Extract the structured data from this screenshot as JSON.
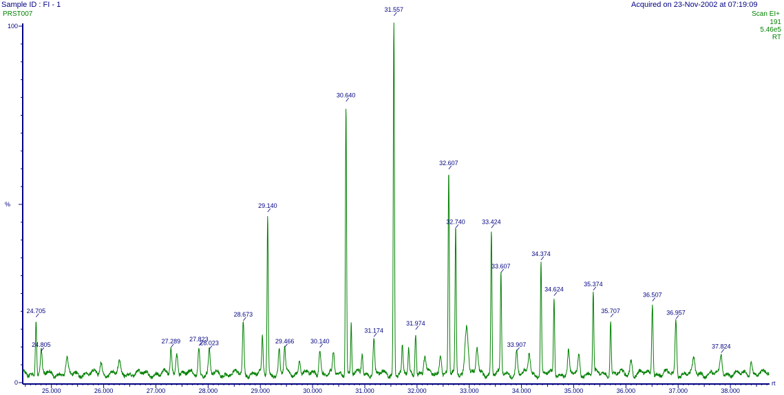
{
  "header": {
    "sample_id": "Sample ID : FI - 1",
    "acquired": "Acquired on 23-Nov-2002 at 07:19:09",
    "file": "PRST007",
    "scan": "Scan EI+",
    "ion": "191",
    "intensity": "5.46e5",
    "trace": "RT"
  },
  "colors": {
    "trace": "#008000",
    "axis": "#000080",
    "label": "#000080"
  },
  "chart_data": {
    "type": "line",
    "title": "",
    "xlabel": "rt",
    "ylabel": "%",
    "xlim": [
      24.45,
      38.75
    ],
    "ylim": [
      0,
      100
    ],
    "x_ticks": [
      "25.000",
      "26.000",
      "27.000",
      "28.000",
      "29.000",
      "30.000",
      "31.000",
      "32.000",
      "33.000",
      "34.000",
      "35.000",
      "36.000",
      "37.000",
      "38.000"
    ],
    "y_ticks": [
      "0",
      "100"
    ],
    "baseline": 2.5,
    "peaks": [
      {
        "rt": 24.705,
        "h": 15.5,
        "w": 0.012,
        "label": "24.705"
      },
      {
        "rt": 24.805,
        "h": 6,
        "w": 0.015,
        "label": "24.805"
      },
      {
        "rt": 25.3,
        "h": 3.5,
        "w": 0.02,
        "label": ""
      },
      {
        "rt": 25.95,
        "h": 3.2,
        "w": 0.02,
        "label": ""
      },
      {
        "rt": 26.3,
        "h": 3,
        "w": 0.02,
        "label": ""
      },
      {
        "rt": 27.289,
        "h": 7,
        "w": 0.015,
        "label": "27.289"
      },
      {
        "rt": 27.4,
        "h": 6.5,
        "w": 0.02,
        "label": ""
      },
      {
        "rt": 27.823,
        "h": 7.5,
        "w": 0.015,
        "label": "27.823"
      },
      {
        "rt": 28.023,
        "h": 6.5,
        "w": 0.015,
        "label": "28.023"
      },
      {
        "rt": 28.673,
        "h": 14.5,
        "w": 0.014,
        "label": "28.673"
      },
      {
        "rt": 29.04,
        "h": 10,
        "w": 0.012,
        "label": ""
      },
      {
        "rt": 29.14,
        "h": 45,
        "w": 0.011,
        "label": "29.140"
      },
      {
        "rt": 29.36,
        "h": 6.5,
        "w": 0.015,
        "label": ""
      },
      {
        "rt": 29.466,
        "h": 7,
        "w": 0.015,
        "label": "29.466"
      },
      {
        "rt": 29.75,
        "h": 4.5,
        "w": 0.02,
        "label": ""
      },
      {
        "rt": 30.14,
        "h": 7,
        "w": 0.018,
        "label": "30.140"
      },
      {
        "rt": 30.4,
        "h": 5.5,
        "w": 0.015,
        "label": ""
      },
      {
        "rt": 30.64,
        "h": 76,
        "w": 0.011,
        "label": "30.640"
      },
      {
        "rt": 30.74,
        "h": 14,
        "w": 0.01,
        "label": ""
      },
      {
        "rt": 30.95,
        "h": 5.5,
        "w": 0.015,
        "label": ""
      },
      {
        "rt": 31.174,
        "h": 10,
        "w": 0.014,
        "label": "31.174"
      },
      {
        "rt": 31.557,
        "h": 100,
        "w": 0.011,
        "label": "31.557"
      },
      {
        "rt": 31.72,
        "h": 7.5,
        "w": 0.012,
        "label": ""
      },
      {
        "rt": 31.84,
        "h": 7,
        "w": 0.012,
        "label": ""
      },
      {
        "rt": 31.974,
        "h": 12,
        "w": 0.013,
        "label": "31.974"
      },
      {
        "rt": 32.15,
        "h": 5,
        "w": 0.02,
        "label": ""
      },
      {
        "rt": 32.45,
        "h": 6,
        "w": 0.02,
        "label": ""
      },
      {
        "rt": 32.607,
        "h": 57,
        "w": 0.011,
        "label": "32.607"
      },
      {
        "rt": 32.74,
        "h": 40.5,
        "w": 0.011,
        "label": "32.740"
      },
      {
        "rt": 32.95,
        "h": 14,
        "w": 0.03,
        "label": ""
      },
      {
        "rt": 33.15,
        "h": 7,
        "w": 0.02,
        "label": ""
      },
      {
        "rt": 33.424,
        "h": 40.5,
        "w": 0.011,
        "label": "33.424"
      },
      {
        "rt": 33.607,
        "h": 28,
        "w": 0.011,
        "label": "33.607"
      },
      {
        "rt": 33.907,
        "h": 6,
        "w": 0.018,
        "label": "33.907"
      },
      {
        "rt": 34.15,
        "h": 6,
        "w": 0.02,
        "label": ""
      },
      {
        "rt": 34.374,
        "h": 31.5,
        "w": 0.011,
        "label": "34.374"
      },
      {
        "rt": 34.624,
        "h": 21.5,
        "w": 0.011,
        "label": "34.624"
      },
      {
        "rt": 34.9,
        "h": 6,
        "w": 0.015,
        "label": ""
      },
      {
        "rt": 35.1,
        "h": 5,
        "w": 0.018,
        "label": ""
      },
      {
        "rt": 35.374,
        "h": 23,
        "w": 0.011,
        "label": "35.374"
      },
      {
        "rt": 35.707,
        "h": 15.5,
        "w": 0.011,
        "label": "35.707"
      },
      {
        "rt": 36.1,
        "h": 4,
        "w": 0.02,
        "label": ""
      },
      {
        "rt": 36.507,
        "h": 20,
        "w": 0.013,
        "label": "36.507"
      },
      {
        "rt": 36.957,
        "h": 15,
        "w": 0.015,
        "label": "36.957"
      },
      {
        "rt": 37.3,
        "h": 4,
        "w": 0.02,
        "label": ""
      },
      {
        "rt": 37.824,
        "h": 5.5,
        "w": 0.02,
        "label": "37.824"
      },
      {
        "rt": 38.4,
        "h": 4,
        "w": 0.02,
        "label": ""
      }
    ]
  }
}
